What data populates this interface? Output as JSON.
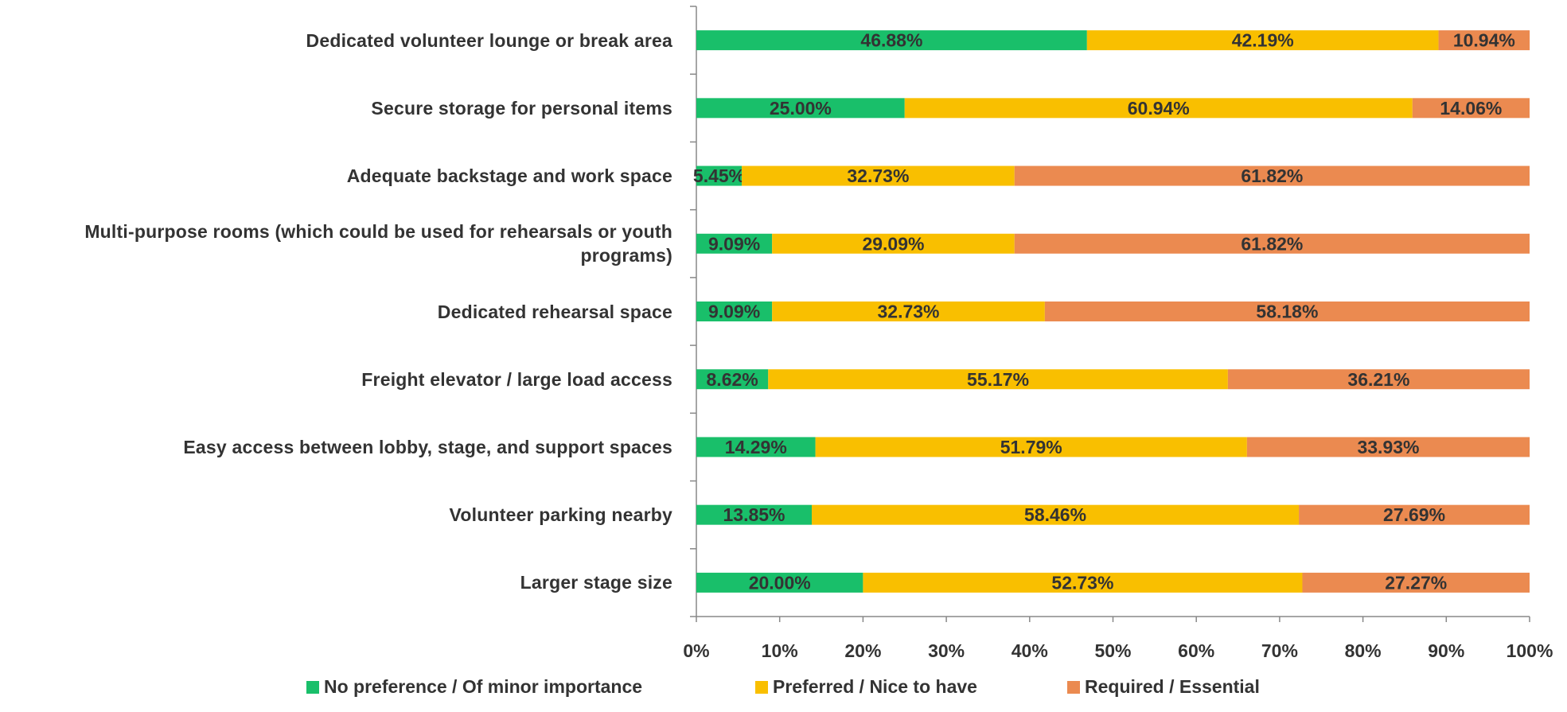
{
  "chart_data": {
    "type": "stacked_barh",
    "categories": [
      "Dedicated volunteer lounge or break area",
      "Secure storage for personal items",
      "Adequate backstage and work space",
      "Multi-purpose rooms (which could be used for rehearsals or youth programs)",
      "Dedicated rehearsal space",
      "Freight elevator / large load access",
      "Easy access between lobby, stage, and support spaces",
      "Volunteer parking nearby",
      "Larger stage size"
    ],
    "series": [
      {
        "name": "No preference / Of minor importance",
        "color": "#19bf6a",
        "values": [
          46.88,
          25.0,
          5.45,
          9.09,
          9.09,
          8.62,
          14.29,
          13.85,
          20.0
        ],
        "value_labels": [
          "46.88%",
          "25.00%",
          "5.45%",
          "9.09%",
          "9.09%",
          "8.62%",
          "14.29%",
          "13.85%",
          "20.00%"
        ]
      },
      {
        "name": "Preferred / Nice to have",
        "color": "#f9bf00",
        "values": [
          42.19,
          60.94,
          32.73,
          29.09,
          32.73,
          55.17,
          51.79,
          58.46,
          52.73
        ],
        "value_labels": [
          "42.19%",
          "60.94%",
          "32.73%",
          "29.09%",
          "32.73%",
          "55.17%",
          "51.79%",
          "58.46%",
          "52.73%"
        ]
      },
      {
        "name": "Required / Essential",
        "color": "#eb8a50",
        "values": [
          10.94,
          14.06,
          61.82,
          61.82,
          58.18,
          36.21,
          33.93,
          27.69,
          27.27
        ],
        "value_labels": [
          "10.94%",
          "14.06%",
          "61.82%",
          "61.82%",
          "58.18%",
          "36.21%",
          "33.93%",
          "27.69%",
          "27.27%"
        ]
      }
    ],
    "xlim": [
      0,
      100
    ],
    "xticks": [
      {
        "value": 0,
        "label": "0%"
      },
      {
        "value": 10,
        "label": "10%"
      },
      {
        "value": 20,
        "label": "20%"
      },
      {
        "value": 30,
        "label": "30%"
      },
      {
        "value": 40,
        "label": "40%"
      },
      {
        "value": 50,
        "label": "50%"
      },
      {
        "value": 60,
        "label": "60%"
      },
      {
        "value": 70,
        "label": "70%"
      },
      {
        "value": 80,
        "label": "80%"
      },
      {
        "value": 90,
        "label": "90%"
      },
      {
        "value": 100,
        "label": "100%"
      }
    ],
    "legend": "bottom"
  }
}
